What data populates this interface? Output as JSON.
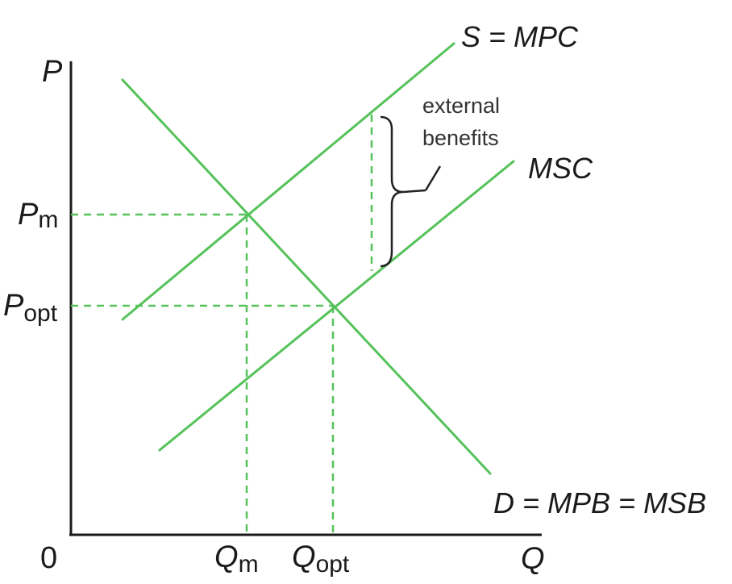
{
  "colors": {
    "curve": "#55c25a",
    "guide": "#55c25a",
    "axis": "#1a1a1a",
    "brace": "#222222"
  },
  "axes": {
    "y_label": "P",
    "x_label": "Q",
    "origin_label": "0"
  },
  "y_ticks": {
    "pm_main": "P",
    "pm_sub": "m",
    "popt_main": "P",
    "popt_sub": "opt"
  },
  "x_ticks": {
    "qm_main": "Q",
    "qm_sub": "m",
    "qopt_main": "Q",
    "qopt_sub": "opt"
  },
  "curves": {
    "supply": "S = MPC",
    "msc": "MSC",
    "demand": "D = MPB = MSB"
  },
  "annotation": {
    "line1": "external",
    "line2": "benefits"
  }
}
